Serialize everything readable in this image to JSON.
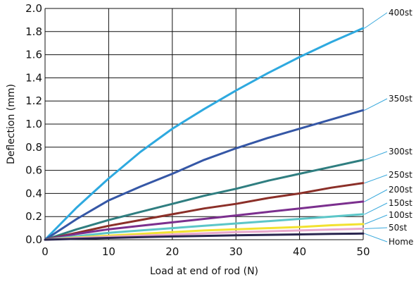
{
  "chart_data": {
    "type": "line",
    "xlabel": "Load at end of rod (N)",
    "ylabel": "Deflection (mm)",
    "xlim": [
      0,
      50
    ],
    "ylim": [
      0,
      2.0
    ],
    "xticks": [
      0,
      10,
      20,
      30,
      40,
      50
    ],
    "yticks": [
      0.0,
      0.2,
      0.4,
      0.6,
      0.8,
      1.0,
      1.2,
      1.4,
      1.6,
      1.8,
      2.0
    ],
    "xtick_labels": [
      "0",
      "10",
      "20",
      "30",
      "40",
      "50"
    ],
    "ytick_labels": [
      "0.0",
      "0.2",
      "0.4",
      "0.6",
      "0.8",
      "1.0",
      "1.2",
      "1.4",
      "1.6",
      "1.8",
      "2.0"
    ],
    "grid": true,
    "legend_placement": "right, labels at line ends",
    "x": [
      0,
      5,
      10,
      15,
      20,
      25,
      30,
      35,
      40,
      45,
      50
    ],
    "series": [
      {
        "name": "400st",
        "color": "#2ea9df",
        "values": [
          0,
          0.28,
          0.53,
          0.76,
          0.96,
          1.13,
          1.29,
          1.44,
          1.58,
          1.71,
          1.83
        ]
      },
      {
        "name": "350st",
        "color": "#3557a6",
        "values": [
          0,
          0.18,
          0.34,
          0.46,
          0.57,
          0.69,
          0.79,
          0.88,
          0.96,
          1.04,
          1.12
        ]
      },
      {
        "name": "300st",
        "color": "#2f7e80",
        "values": [
          0,
          0.09,
          0.17,
          0.24,
          0.31,
          0.38,
          0.44,
          0.51,
          0.57,
          0.63,
          0.69
        ]
      },
      {
        "name": "250st",
        "color": "#8b2f28",
        "values": [
          0,
          0.06,
          0.12,
          0.17,
          0.22,
          0.27,
          0.31,
          0.36,
          0.4,
          0.45,
          0.49
        ]
      },
      {
        "name": "200st",
        "color": "#7b2f8e",
        "values": [
          0,
          0.05,
          0.09,
          0.12,
          0.15,
          0.18,
          0.21,
          0.24,
          0.27,
          0.3,
          0.33
        ]
      },
      {
        "name": "150st",
        "color": "#5cc6c8",
        "values": [
          0,
          0.03,
          0.06,
          0.08,
          0.1,
          0.12,
          0.14,
          0.16,
          0.18,
          0.2,
          0.22
        ]
      },
      {
        "name": "100st",
        "color": "#f2e230",
        "values": [
          0,
          0.02,
          0.035,
          0.05,
          0.065,
          0.08,
          0.09,
          0.1,
          0.11,
          0.125,
          0.135
        ]
      },
      {
        "name": "50st",
        "color": "#e8a8cc",
        "values": [
          0,
          0.015,
          0.025,
          0.035,
          0.045,
          0.055,
          0.065,
          0.072,
          0.08,
          0.088,
          0.095
        ]
      },
      {
        "name": "Home",
        "color": "#2a2650",
        "values": [
          0,
          0.008,
          0.015,
          0.022,
          0.028,
          0.033,
          0.038,
          0.042,
          0.046,
          0.05,
          0.053
        ]
      }
    ]
  }
}
